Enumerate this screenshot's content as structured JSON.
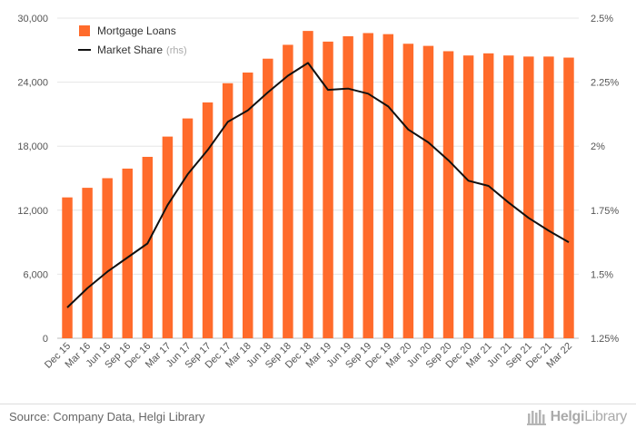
{
  "chart_data": {
    "type": "bar+line",
    "categories": [
      "Dec 15",
      "Mar 16",
      "Jun 16",
      "Sep 16",
      "Dec 16",
      "Mar 17",
      "Jun 17",
      "Sep 17",
      "Dec 17",
      "Mar 18",
      "Jun 18",
      "Sep 18",
      "Dec 18",
      "Mar 19",
      "Jun 19",
      "Sep 19",
      "Dec 19",
      "Mar 20",
      "Jun 20",
      "Sep 20",
      "Dec 20",
      "Mar 21",
      "Jun 21",
      "Sep 21",
      "Dec 21",
      "Mar 22"
    ],
    "series": [
      {
        "name": "Mortgage Loans",
        "type": "bar",
        "axis": "left",
        "color": "#FF6B2B",
        "values": [
          13200,
          14100,
          15000,
          15900,
          17000,
          18900,
          20600,
          22100,
          23900,
          24900,
          26200,
          27500,
          28800,
          27800,
          28300,
          28600,
          28500,
          27600,
          27400,
          26900,
          26500,
          26700,
          26500,
          26400,
          26400,
          26300
        ]
      },
      {
        "name": "Market Share",
        "axis_note": "(rhs)",
        "type": "line",
        "axis": "right",
        "color": "#111111",
        "values": [
          1.37,
          1.445,
          1.51,
          1.565,
          1.62,
          1.77,
          1.89,
          1.985,
          2.095,
          2.14,
          2.21,
          2.275,
          2.325,
          2.22,
          2.225,
          2.205,
          2.155,
          2.065,
          2.015,
          1.945,
          1.865,
          1.845,
          1.78,
          1.72,
          1.67,
          1.625
        ]
      }
    ],
    "left_axis": {
      "min": 0,
      "max": 30000,
      "ticks": [
        "0",
        "6,000",
        "12,000",
        "18,000",
        "24,000",
        "30,000"
      ],
      "tick_values": [
        0,
        6000,
        12000,
        18000,
        24000,
        30000
      ]
    },
    "right_axis": {
      "min": 1.25,
      "max": 2.5,
      "ticks": [
        "1.25%",
        "1.5%",
        "1.75%",
        "2%",
        "2.25%",
        "2.5%"
      ],
      "tick_values": [
        1.25,
        1.5,
        1.75,
        2.0,
        2.25,
        2.5
      ]
    },
    "grid": true,
    "legend_position": "top-left"
  },
  "legend": {
    "bar_label": "Mortgage Loans",
    "line_label": "Market Share",
    "line_sub": "(rhs)"
  },
  "footer": {
    "source": "Source: Company Data, Helgi Library",
    "logo_prefix": "Helgi",
    "logo_suffix": "Library"
  },
  "colors": {
    "bar": "#FF6B2B",
    "line": "#111111",
    "grid": "#e6e6e6"
  }
}
